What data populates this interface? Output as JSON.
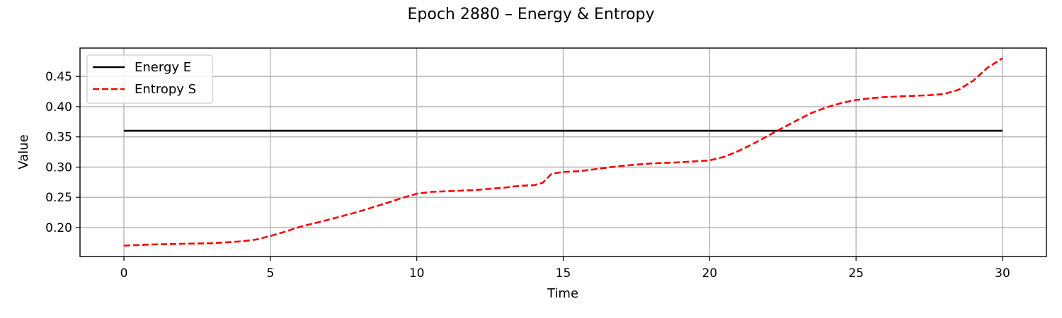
{
  "chart_data": {
    "type": "line",
    "title": "Epoch 2880 – Energy & Entropy",
    "xlabel": "Time",
    "ylabel": "Value",
    "xlim": [
      -1.5,
      31.5
    ],
    "ylim": [
      0.152,
      0.497
    ],
    "xticks": [
      0,
      5,
      10,
      15,
      20,
      25,
      30
    ],
    "yticks": [
      0.2,
      0.25,
      0.3,
      0.35,
      0.4,
      0.45
    ],
    "grid": true,
    "legend_position": "top-left",
    "series": [
      {
        "name": "Energy E",
        "color": "#000000",
        "dash": "solid",
        "x": [
          0,
          5,
          10,
          15,
          20,
          25,
          28,
          30
        ],
        "y": [
          0.36,
          0.36,
          0.36,
          0.36,
          0.36,
          0.36,
          0.36,
          0.36
        ]
      },
      {
        "name": "Entropy S",
        "color": "#ff0000",
        "dash": "dashed",
        "x": [
          0,
          0.5,
          1,
          2,
          3,
          4,
          4.5,
          5,
          5.5,
          6,
          7,
          8,
          9,
          9.5,
          10,
          10.5,
          11,
          12,
          13,
          13.5,
          14,
          14.3,
          14.6,
          15,
          15.5,
          16,
          17,
          18,
          19,
          20,
          20.5,
          21,
          21.5,
          22,
          22.5,
          23,
          23.5,
          24,
          24.5,
          25,
          25.5,
          26,
          27,
          27.5,
          28,
          28.5,
          29,
          29.5,
          30
        ],
        "y": [
          0.17,
          0.171,
          0.172,
          0.173,
          0.174,
          0.177,
          0.18,
          0.186,
          0.193,
          0.201,
          0.213,
          0.226,
          0.241,
          0.249,
          0.256,
          0.259,
          0.26,
          0.262,
          0.266,
          0.269,
          0.27,
          0.274,
          0.289,
          0.292,
          0.293,
          0.296,
          0.302,
          0.306,
          0.308,
          0.311,
          0.317,
          0.327,
          0.339,
          0.352,
          0.365,
          0.378,
          0.39,
          0.399,
          0.406,
          0.411,
          0.414,
          0.416,
          0.418,
          0.419,
          0.421,
          0.428,
          0.443,
          0.465,
          0.48
        ]
      }
    ]
  }
}
